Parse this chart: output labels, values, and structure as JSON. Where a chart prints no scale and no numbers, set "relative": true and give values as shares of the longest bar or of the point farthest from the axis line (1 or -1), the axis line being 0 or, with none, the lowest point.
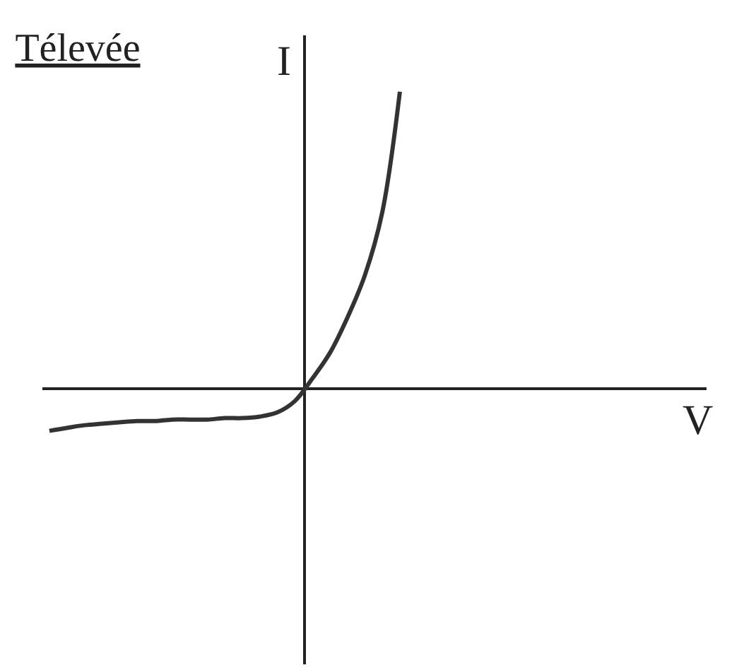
{
  "chart_data": {
    "type": "line",
    "title": "Télevée",
    "annotations": [
      "V"
    ],
    "ylabel": "I",
    "relative": true,
    "grid": false,
    "legend": false,
    "marker": "none",
    "line_style": "solid",
    "categories": [
      null,
      null,
      null,
      null,
      null,
      null,
      null,
      null,
      null,
      null,
      null,
      null,
      null,
      null,
      null,
      null,
      null,
      null,
      null,
      null,
      null
    ],
    "series": [
      {
        "color": "#333333",
        "values": [
          -0.143,
          -0.133,
          -0.124,
          -0.119,
          -0.114,
          -0.11,
          -0.11,
          -0.105,
          -0.105,
          -0.105,
          -0.1,
          -0.1,
          -0.095,
          -0.081,
          -0.043,
          0.033,
          0.119,
          0.238,
          0.381,
          0.595,
          1
        ]
      }
    ]
  }
}
